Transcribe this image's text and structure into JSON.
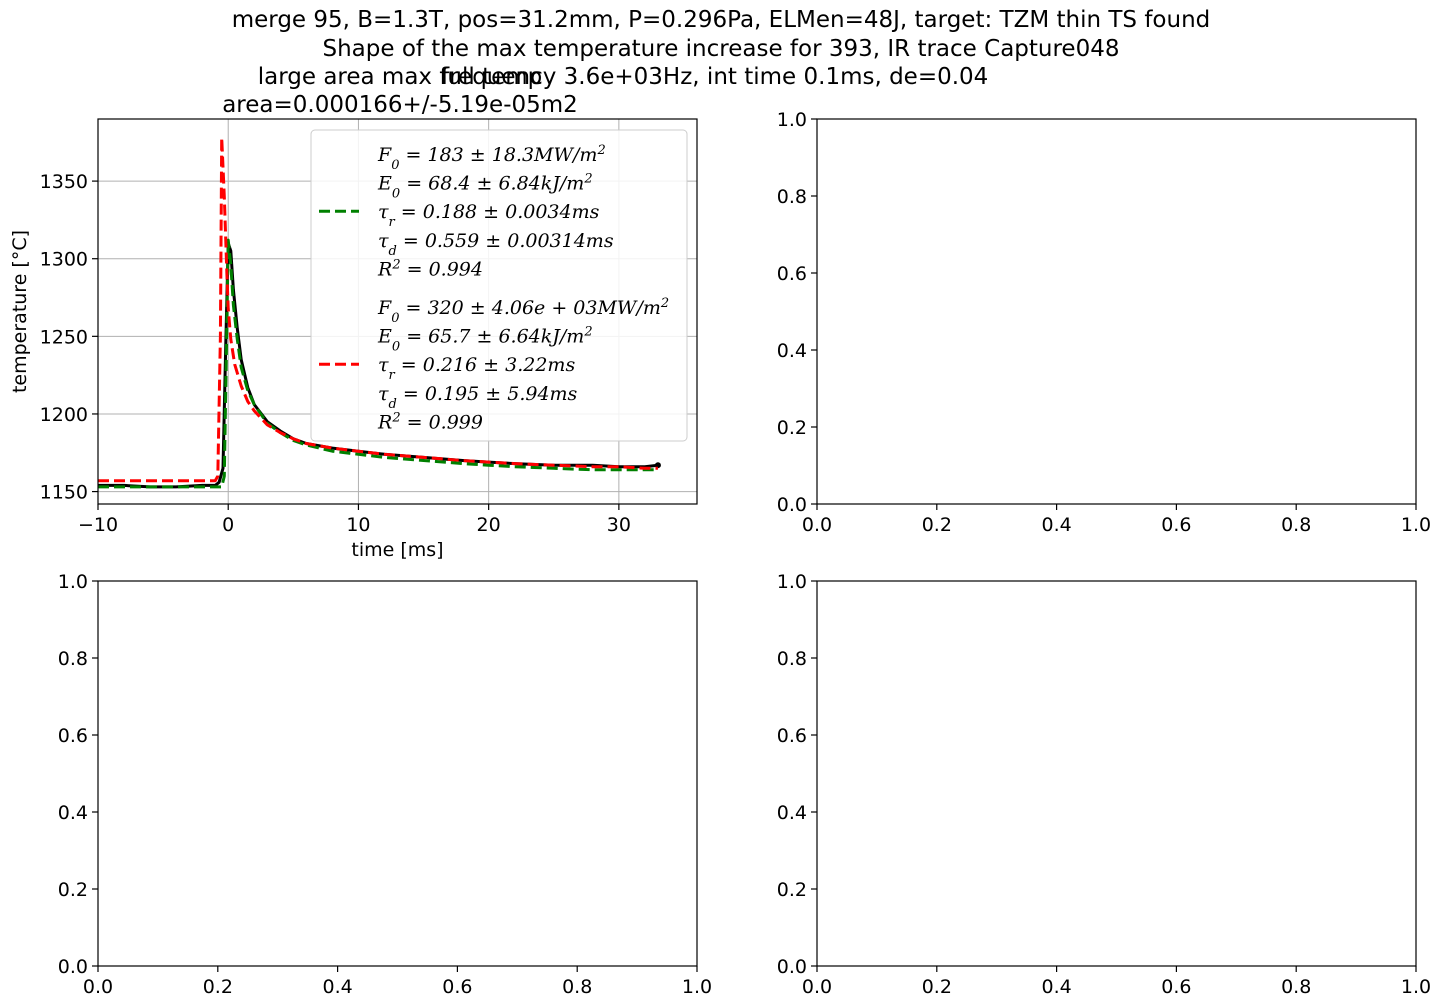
{
  "figure": {
    "suptitle_lines": [
      "merge 95, B=1.3T, pos=31.2mm, P=0.296Pa, ELMen=48J, target: TZM thin TS found",
      "Shape of the max temperature increase for 393, IR trace Capture048"
    ],
    "ax_title_left_lines": [
      "large area max full temp",
      "area=0.000166+/-5.19e-05m2"
    ],
    "ax_title_right": "frequency 3.6e+03Hz, int time 0.1ms, de=0.04"
  },
  "chart_data": [
    {
      "type": "line",
      "xlabel": "time [ms]",
      "ylabel": "temperature [°C]",
      "xlim": [
        -10,
        36
      ],
      "ylim": [
        1142,
        1390
      ],
      "xticks": [
        -10,
        0,
        10,
        20,
        30
      ],
      "xtick_labels": [
        "−10",
        "0",
        "10",
        "20",
        "30"
      ],
      "yticks": [
        1150,
        1200,
        1250,
        1300,
        1350
      ],
      "ytick_labels": [
        "1150",
        "1200",
        "1250",
        "1300",
        "1350"
      ],
      "grid": true,
      "legend_position": "upper right",
      "series": [
        {
          "role": "measured",
          "color": "#000000",
          "style": "solid",
          "x": [
            -10,
            -8,
            -6,
            -4,
            -2,
            -1,
            -0.7,
            -0.4,
            -0.2,
            0,
            0.2,
            0.4,
            0.7,
            1,
            1.5,
            2,
            3,
            4,
            5,
            6,
            8,
            10,
            12,
            15,
            18,
            20,
            22,
            25,
            28,
            30,
            32,
            33
          ],
          "y": [
            1154,
            1154,
            1153,
            1153,
            1154,
            1154,
            1156,
            1165,
            1240,
            1310,
            1305,
            1280,
            1255,
            1235,
            1217,
            1206,
            1195,
            1189,
            1184,
            1181,
            1178,
            1176,
            1174,
            1172,
            1170,
            1169,
            1168,
            1167,
            1167,
            1166,
            1166,
            1167
          ]
        },
        {
          "legend": [
            "F_0 = 183 ± 18.3MW/m^2",
            "E_0 = 68.4 ± 6.84kJ/m^2",
            "τ_r = 0.188 ± 0.0034ms",
            "τ_d = 0.559 ± 0.00314ms",
            "R^2 = 0.994"
          ],
          "color": "#008000",
          "style": "dashed",
          "x": [
            -10,
            -6,
            -2,
            -0.5,
            -0.3,
            -0.1,
            0,
            0.2,
            0.4,
            0.7,
            1,
            1.5,
            2,
            3,
            4,
            5,
            6,
            8,
            10,
            12,
            15,
            18,
            20,
            22,
            25,
            28,
            30,
            32,
            33
          ],
          "y": [
            1153,
            1153,
            1153,
            1153,
            1160,
            1260,
            1312,
            1296,
            1270,
            1248,
            1230,
            1215,
            1206,
            1194,
            1188,
            1183,
            1180,
            1176,
            1174,
            1172,
            1170,
            1168,
            1167,
            1166,
            1165,
            1164,
            1164,
            1164,
            1164
          ]
        },
        {
          "legend": [
            "F_0 = 320 ± 4.06e + 03MW/m^2",
            "E_0 = 65.7 ± 6.64kJ/m^2",
            "τ_r = 0.216 ± 3.22ms",
            "τ_d = 0.195 ± 5.94ms",
            "R^2 = 0.999"
          ],
          "color": "#ff0000",
          "style": "dashed",
          "x": [
            -10,
            -6,
            -2,
            -1,
            -0.8,
            -0.6,
            -0.5,
            -0.3,
            -0.1,
            0,
            0.2,
            0.5,
            1,
            1.5,
            2,
            3,
            4,
            5,
            6,
            8,
            10,
            12,
            15,
            18,
            20,
            22,
            25,
            28,
            30,
            32,
            33
          ],
          "y": [
            1157,
            1157,
            1157,
            1157,
            1160,
            1250,
            1378,
            1340,
            1290,
            1268,
            1248,
            1232,
            1218,
            1208,
            1202,
            1193,
            1188,
            1184,
            1181,
            1178,
            1176,
            1174,
            1172,
            1170,
            1169,
            1168,
            1167,
            1166,
            1166,
            1165,
            1165
          ]
        }
      ]
    },
    {
      "type": "line",
      "xlim": [
        0,
        1
      ],
      "ylim": [
        0,
        1
      ],
      "xtick_labels": [
        "0.0",
        "0.2",
        "0.4",
        "0.6",
        "0.8",
        "1.0"
      ],
      "ytick_labels": [
        "0.0",
        "0.2",
        "0.4",
        "0.6",
        "0.8",
        "1.0"
      ],
      "series": []
    },
    {
      "type": "line",
      "xlim": [
        0,
        1
      ],
      "ylim": [
        0,
        1
      ],
      "xtick_labels": [
        "0.0",
        "0.2",
        "0.4",
        "0.6",
        "0.8",
        "1.0"
      ],
      "ytick_labels": [
        "0.0",
        "0.2",
        "0.4",
        "0.6",
        "0.8",
        "1.0"
      ],
      "series": []
    },
    {
      "type": "line",
      "xlim": [
        0,
        1
      ],
      "ylim": [
        0,
        1
      ],
      "xtick_labels": [
        "0.0",
        "0.2",
        "0.4",
        "0.6",
        "0.8",
        "1.0"
      ],
      "ytick_labels": [
        "0.0",
        "0.2",
        "0.4",
        "0.6",
        "0.8",
        "1.0"
      ],
      "series": []
    }
  ]
}
